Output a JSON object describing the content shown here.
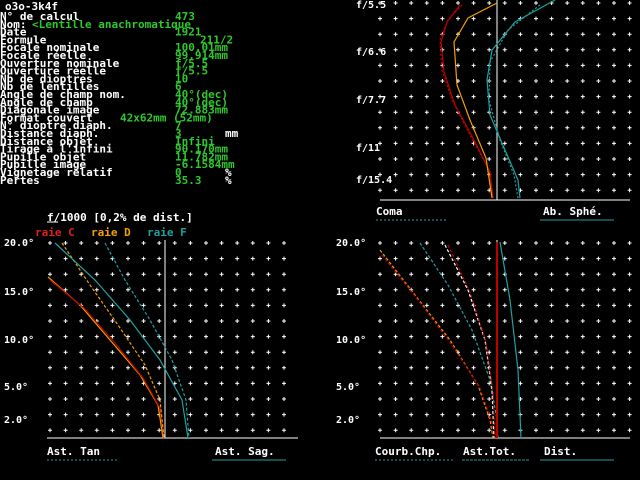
{
  "window": {
    "title": "o3o-3k4f"
  },
  "fields": [
    {
      "label": "N° de calcul",
      "value": "473"
    },
    {
      "label": "Nom:",
      "value": "<Lentille anachromatique"
    },
    {
      "label": "Date",
      "value": "1921"
    },
    {
      "label": "Formule",
      "value": "211/2"
    },
    {
      "label": "Focale nominale",
      "value": "100.01mm"
    },
    {
      "label": "Focale réelle",
      "value": "99.914mm"
    },
    {
      "label": "Ouverture nominale",
      "value": "f/5.5"
    },
    {
      "label": "Ouverture réelle",
      "value": "f/5.5"
    },
    {
      "label": "Nb de dioptres",
      "value": "10"
    },
    {
      "label": "Nb de lentilles",
      "value": "6"
    },
    {
      "label": "Angle de champ nom.",
      "value": "40°(dec)"
    },
    {
      "label": "Angle de champ",
      "value": "40°(dec)"
    },
    {
      "label": "Diagonale image",
      "value": "72.883mm"
    },
    {
      "label": "Format couvert",
      "value": "42x62mm (52mm)"
    },
    {
      "label": "N° dioptre diaph.",
      "value": "7"
    },
    {
      "label": "Distance diaph.",
      "value": "3",
      "unit": "mm"
    },
    {
      "label": "Distance objet",
      "value": "Infini"
    },
    {
      "label": "Tirage à l'infini",
      "value": "90.170mm"
    },
    {
      "label": "Pupille objet",
      "value": "11.782mm"
    },
    {
      "label": "Pupille image",
      "value": "-6.1584mm"
    },
    {
      "label": "Vignetage relatif",
      "value": "0",
      "unit": "%"
    },
    {
      "label": "Pertes",
      "value": "35.3",
      "unit": "%"
    }
  ],
  "scale_note": "f/1000 [0,2% de dist.]",
  "legend": [
    "raie C",
    "raie D",
    "raie F"
  ],
  "panels": {
    "coma": {
      "yticks": [
        "f/5.5",
        "f/6.6",
        "f/7.7",
        "f/11",
        "f/15.4"
      ],
      "labels": [
        "Coma",
        "Ab. Sphé."
      ]
    },
    "astig": {
      "yticks": [
        "20.0°",
        "15.0°",
        "10.0°",
        "5.0°",
        "2.0°"
      ],
      "labels": [
        "Ast. Tan",
        "Ast. Sag."
      ]
    },
    "field": {
      "yticks": [
        "20.0°",
        "15.0°",
        "10.0°",
        "5.0°",
        "2.0°"
      ],
      "labels": [
        "Courb.Chp.",
        "Ast.Tot.",
        "Dist."
      ]
    }
  }
}
